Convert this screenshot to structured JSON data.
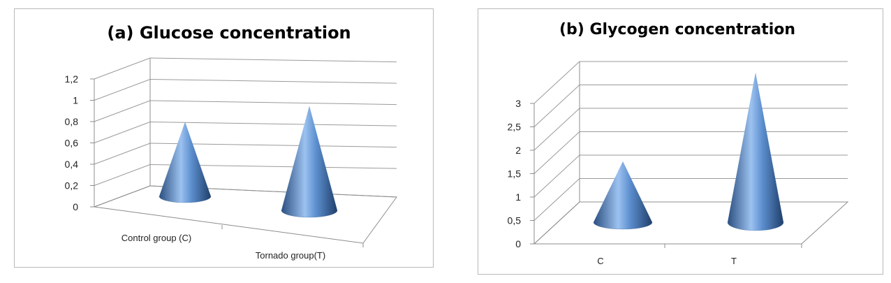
{
  "chart_data": [
    {
      "type": "bar",
      "shape": "3d-cone",
      "title": "(a) Glucose concentration",
      "categories": [
        "Control group (C)",
        "Tornado group(T)"
      ],
      "values": [
        0.7,
        0.98
      ],
      "ylim": [
        0,
        1.2
      ],
      "yticks": [
        "0",
        "0,2",
        "0,4",
        "0,6",
        "0,8",
        "1",
        "1,2"
      ],
      "grid": true,
      "legend": "none",
      "color": "#4f81bd"
    },
    {
      "type": "bar",
      "shape": "3d-cone",
      "title": "(b) Glycogen concentration",
      "categories": [
        "C",
        "T"
      ],
      "values": [
        1.3,
        3.2
      ],
      "ylim": [
        0,
        3
      ],
      "yticks": [
        "0",
        "0,5",
        "1",
        "1,5",
        "2",
        "2,5",
        "3"
      ],
      "grid": true,
      "legend": "none",
      "color": "#4f81bd"
    }
  ]
}
